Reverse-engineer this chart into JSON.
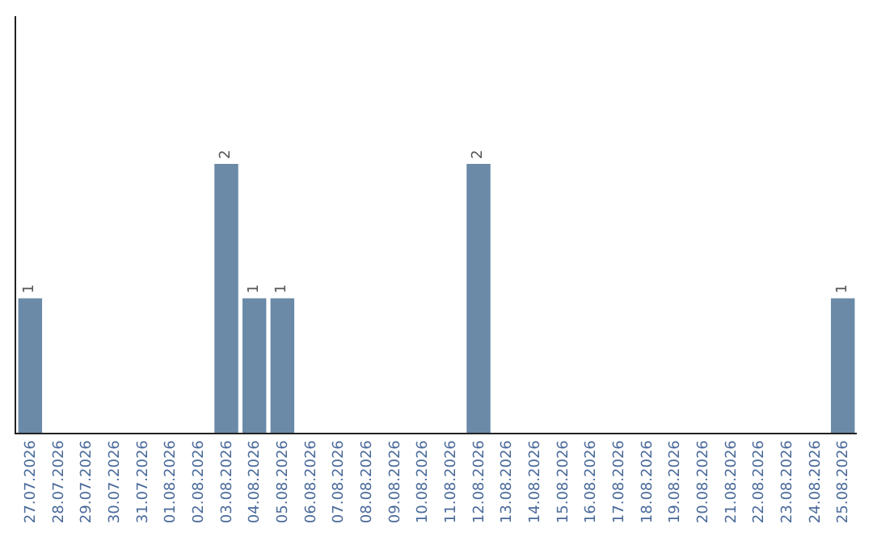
{
  "chart_data": {
    "type": "bar",
    "categories": [
      "27.07.2026",
      "28.07.2026",
      "29.07.2026",
      "30.07.2026",
      "31.07.2026",
      "01.08.2026",
      "02.08.2026",
      "03.08.2026",
      "04.08.2026",
      "05.08.2026",
      "06.08.2026",
      "07.08.2026",
      "08.08.2026",
      "09.08.2026",
      "10.08.2026",
      "11.08.2026",
      "12.08.2026",
      "13.08.2026",
      "14.08.2026",
      "15.08.2026",
      "16.08.2026",
      "17.08.2026",
      "18.08.2026",
      "19.08.2026",
      "20.08.2026",
      "21.08.2026",
      "22.08.2026",
      "23.08.2026",
      "24.08.2026",
      "25.08.2026"
    ],
    "values": [
      1,
      0,
      0,
      0,
      0,
      0,
      0,
      2,
      1,
      1,
      0,
      0,
      0,
      0,
      0,
      0,
      2,
      0,
      0,
      0,
      0,
      0,
      0,
      0,
      0,
      0,
      0,
      0,
      0,
      1
    ],
    "value_labels": [
      "1",
      null,
      null,
      null,
      null,
      null,
      null,
      "2",
      "1",
      "1",
      null,
      null,
      null,
      null,
      null,
      null,
      "2",
      null,
      null,
      null,
      null,
      null,
      null,
      null,
      null,
      null,
      null,
      null,
      null,
      "1"
    ],
    "color": "#6a8aa8",
    "ylim": [
      0,
      3.1
    ],
    "tick_labels": "x",
    "legend": false
  }
}
